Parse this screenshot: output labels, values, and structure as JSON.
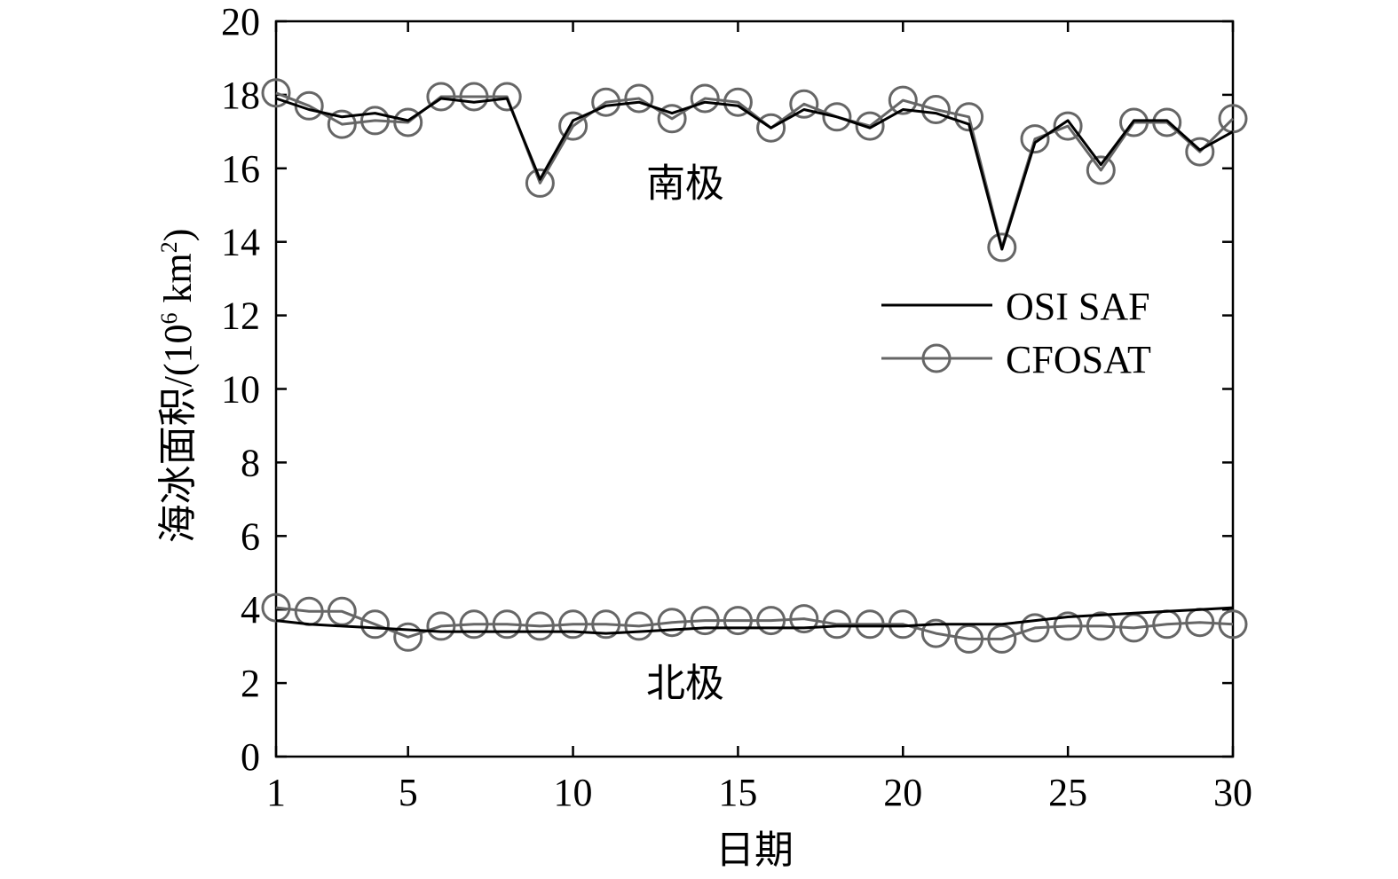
{
  "chart_data": {
    "type": "line",
    "xlabel": "日期",
    "ylabel": "海冰面积/(10",
    "ylabel_exp": "6",
    "ylabel_unit": " km",
    "ylabel_unit_exp": "2",
    "ylabel_close": ")",
    "xlim": [
      1,
      30
    ],
    "ylim": [
      0,
      20
    ],
    "xticks": [
      1,
      5,
      10,
      15,
      20,
      25,
      30
    ],
    "yticks": [
      0,
      2,
      4,
      6,
      8,
      10,
      12,
      14,
      16,
      18,
      20
    ],
    "grid": false,
    "legend_position": "right-middle",
    "annotations": [
      {
        "label": "南极",
        "x": 13.4,
        "y": 15.6
      },
      {
        "label": "北极",
        "x": 13.4,
        "y": 2.0
      }
    ],
    "series": [
      {
        "name": "OSI SAF",
        "group": "south",
        "color": "#000000",
        "marker": "none",
        "values": [
          17.9,
          17.6,
          17.4,
          17.5,
          17.3,
          17.9,
          17.8,
          17.9,
          15.7,
          17.3,
          17.7,
          17.8,
          17.5,
          17.8,
          17.7,
          17.1,
          17.6,
          17.4,
          17.1,
          17.6,
          17.5,
          17.2,
          13.8,
          16.7,
          17.3,
          16.1,
          17.3,
          17.3,
          16.5,
          17.0
        ]
      },
      {
        "name": "CFOSAT",
        "group": "south",
        "color": "#666666",
        "marker": "circle",
        "values": [
          18.05,
          17.7,
          17.2,
          17.3,
          17.25,
          17.95,
          17.95,
          17.95,
          15.6,
          17.15,
          17.8,
          17.9,
          17.35,
          17.9,
          17.8,
          17.1,
          17.75,
          17.4,
          17.15,
          17.85,
          17.6,
          17.4,
          13.85,
          16.8,
          17.15,
          15.95,
          17.25,
          17.25,
          16.45,
          17.35
        ]
      },
      {
        "name": "OSI SAF",
        "group": "north",
        "color": "#000000",
        "marker": "none",
        "values": [
          3.7,
          3.6,
          3.55,
          3.5,
          3.45,
          3.4,
          3.4,
          3.4,
          3.4,
          3.4,
          3.35,
          3.4,
          3.45,
          3.5,
          3.5,
          3.5,
          3.5,
          3.55,
          3.55,
          3.55,
          3.6,
          3.6,
          3.6,
          3.7,
          3.8,
          3.85,
          3.9,
          3.95,
          4.0,
          4.05
        ]
      },
      {
        "name": "CFOSAT",
        "group": "north",
        "color": "#666666",
        "marker": "circle",
        "values": [
          4.05,
          3.95,
          3.95,
          3.6,
          3.25,
          3.55,
          3.6,
          3.6,
          3.55,
          3.6,
          3.6,
          3.55,
          3.65,
          3.7,
          3.7,
          3.7,
          3.75,
          3.6,
          3.6,
          3.6,
          3.35,
          3.2,
          3.2,
          3.5,
          3.55,
          3.55,
          3.5,
          3.6,
          3.65,
          3.6
        ]
      }
    ],
    "legend": [
      {
        "label": "OSI SAF",
        "color": "#000000",
        "marker": "none"
      },
      {
        "label": "CFOSAT",
        "color": "#666666",
        "marker": "circle"
      }
    ]
  }
}
